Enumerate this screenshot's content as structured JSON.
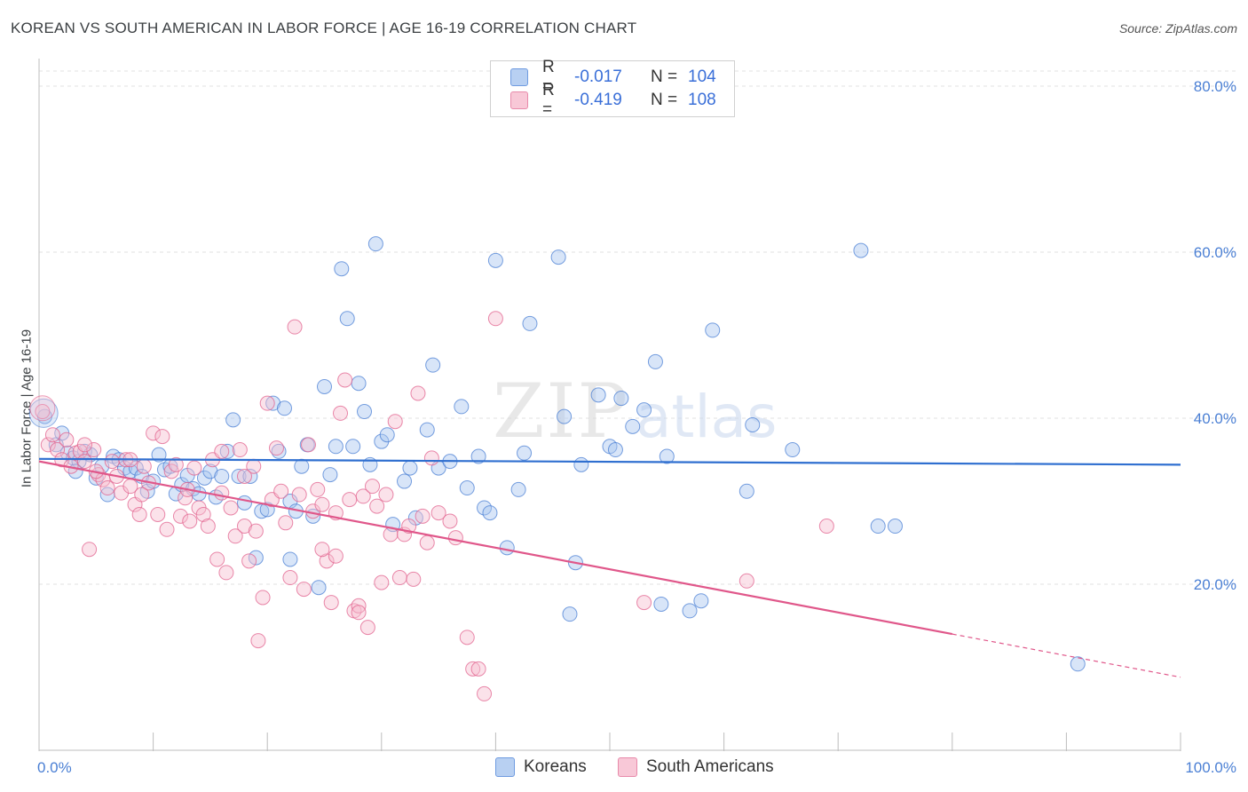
{
  "header": {
    "title": "KOREAN VS SOUTH AMERICAN IN LABOR FORCE | AGE 16-19 CORRELATION CHART",
    "source": "Source: ZipAtlas.com"
  },
  "legend": {
    "rows": [
      {
        "r_label": "R =",
        "r_value": "-0.017",
        "n_label": "N =",
        "n_value": "104",
        "color": "#8fb5ea"
      },
      {
        "r_label": "R =",
        "r_value": "-0.419",
        "n_label": "N =",
        "n_value": "108",
        "color": "#f0a4bd"
      }
    ]
  },
  "bottom_legend": {
    "items": [
      {
        "label": "Koreans",
        "color": "#8fb5ea"
      },
      {
        "label": "South Americans",
        "color": "#f0a4bd"
      }
    ]
  },
  "watermark": {
    "zip": "ZIP",
    "atlas": "atlas"
  },
  "chart_data": {
    "type": "scatter",
    "title": "KOREAN VS SOUTH AMERICAN IN LABOR FORCE | AGE 16-19 CORRELATION CHART",
    "xlabel": "",
    "ylabel": "In Labor Force | Age 16-19",
    "xlim": [
      0,
      100
    ],
    "ylim": [
      0,
      80
    ],
    "x_tick_labels": [
      "0.0%",
      "100.0%"
    ],
    "y_ticks": [
      20,
      40,
      60,
      80
    ],
    "y_tick_labels": [
      "20.0%",
      "40.0%",
      "60.0%",
      "80.0%"
    ],
    "grid": true,
    "series": [
      {
        "name": "Koreans",
        "color": "#4a7fd4",
        "fill": "#a9c6f0",
        "trend": {
          "x": [
            0,
            100
          ],
          "y": [
            35.1,
            34.4
          ]
        },
        "points": [
          [
            0.5,
            40.2
          ],
          [
            1.5,
            36.8
          ],
          [
            2.0,
            38.2
          ],
          [
            2.5,
            35.8
          ],
          [
            3.0,
            35.2
          ],
          [
            3.5,
            34.8
          ],
          [
            4.0,
            36.0
          ],
          [
            4.5,
            35.6
          ],
          [
            5.0,
            32.8
          ],
          [
            5.5,
            34.2
          ],
          [
            6.0,
            30.8
          ],
          [
            6.5,
            35.4
          ],
          [
            7.0,
            35.0
          ],
          [
            7.5,
            34.0
          ],
          [
            8.0,
            33.6
          ],
          [
            8.5,
            34.0
          ],
          [
            9.0,
            33.0
          ],
          [
            9.5,
            31.2
          ],
          [
            10.0,
            32.4
          ],
          [
            10.5,
            35.6
          ],
          [
            11.0,
            33.8
          ],
          [
            11.5,
            34.2
          ],
          [
            12.0,
            30.9
          ],
          [
            12.5,
            32.0
          ],
          [
            13.0,
            33.1
          ],
          [
            13.5,
            31.5
          ],
          [
            14.0,
            30.9
          ],
          [
            14.5,
            32.8
          ],
          [
            15.0,
            33.6
          ],
          [
            15.5,
            30.5
          ],
          [
            16.0,
            33.0
          ],
          [
            16.5,
            36.0
          ],
          [
            17.0,
            39.8
          ],
          [
            17.5,
            33.0
          ],
          [
            18.0,
            29.8
          ],
          [
            18.5,
            33.0
          ],
          [
            19.0,
            23.2
          ],
          [
            19.5,
            28.8
          ],
          [
            20.0,
            29.0
          ],
          [
            20.5,
            41.8
          ],
          [
            21.0,
            36.0
          ],
          [
            21.5,
            41.2
          ],
          [
            22.0,
            30.0
          ],
          [
            22.5,
            28.8
          ],
          [
            23.0,
            34.2
          ],
          [
            23.5,
            36.8
          ],
          [
            24.0,
            28.2
          ],
          [
            24.5,
            19.6
          ],
          [
            25.0,
            43.8
          ],
          [
            25.5,
            33.2
          ],
          [
            26.0,
            36.6
          ],
          [
            26.5,
            58.0
          ],
          [
            27.0,
            52.0
          ],
          [
            27.5,
            36.6
          ],
          [
            28.0,
            44.2
          ],
          [
            28.5,
            40.8
          ],
          [
            29.0,
            34.4
          ],
          [
            29.5,
            61.0
          ],
          [
            30.0,
            37.2
          ],
          [
            30.5,
            38.0
          ],
          [
            31.0,
            27.2
          ],
          [
            32.0,
            32.4
          ],
          [
            32.5,
            34.0
          ],
          [
            33.0,
            28.0
          ],
          [
            34.0,
            38.6
          ],
          [
            34.5,
            46.4
          ],
          [
            35.0,
            34.0
          ],
          [
            36.0,
            34.8
          ],
          [
            37.0,
            41.4
          ],
          [
            37.5,
            31.6
          ],
          [
            38.5,
            35.4
          ],
          [
            39.0,
            29.2
          ],
          [
            39.5,
            28.6
          ],
          [
            40.0,
            59.0
          ],
          [
            41.0,
            24.4
          ],
          [
            42.0,
            31.4
          ],
          [
            42.5,
            35.8
          ],
          [
            43.0,
            51.4
          ],
          [
            45.5,
            59.4
          ],
          [
            46.0,
            40.2
          ],
          [
            46.5,
            16.4
          ],
          [
            47.0,
            22.6
          ],
          [
            47.5,
            34.4
          ],
          [
            49.0,
            42.8
          ],
          [
            50.0,
            36.6
          ],
          [
            50.5,
            36.2
          ],
          [
            51.0,
            42.4
          ],
          [
            52.0,
            39.0
          ],
          [
            53.0,
            41.0
          ],
          [
            54.0,
            46.8
          ],
          [
            54.5,
            17.6
          ],
          [
            55.0,
            35.4
          ],
          [
            57.0,
            16.8
          ],
          [
            58.0,
            18.0
          ],
          [
            59.0,
            50.6
          ],
          [
            62.0,
            31.2
          ],
          [
            62.5,
            39.2
          ],
          [
            66.0,
            36.2
          ],
          [
            72.0,
            60.2
          ],
          [
            73.5,
            27.0
          ],
          [
            75.0,
            27.0
          ],
          [
            91.0,
            10.4
          ],
          [
            3.2,
            33.6
          ],
          [
            22.0,
            23.0
          ]
        ]
      },
      {
        "name": "South Americans",
        "color": "#e2628e",
        "fill": "#f6bfd0",
        "trend": {
          "x": [
            0,
            80
          ],
          "y": [
            34.8,
            14.0
          ]
        },
        "trend_dashed": {
          "x": [
            80,
            100
          ],
          "y": [
            14.0,
            8.8
          ]
        },
        "points": [
          [
            0.3,
            40.8
          ],
          [
            0.8,
            36.8
          ],
          [
            1.2,
            38.0
          ],
          [
            1.6,
            36.2
          ],
          [
            2.0,
            35.0
          ],
          [
            2.4,
            37.4
          ],
          [
            2.8,
            34.2
          ],
          [
            3.2,
            35.8
          ],
          [
            3.6,
            36.0
          ],
          [
            4.0,
            34.8
          ],
          [
            4.4,
            24.2
          ],
          [
            4.8,
            36.2
          ],
          [
            5.2,
            33.2
          ],
          [
            5.6,
            32.6
          ],
          [
            6.0,
            31.6
          ],
          [
            6.4,
            34.8
          ],
          [
            6.8,
            33.0
          ],
          [
            7.2,
            31.0
          ],
          [
            7.6,
            35.0
          ],
          [
            8.0,
            31.8
          ],
          [
            8.4,
            29.6
          ],
          [
            8.8,
            28.4
          ],
          [
            9.2,
            34.2
          ],
          [
            9.6,
            32.2
          ],
          [
            10.0,
            38.2
          ],
          [
            10.4,
            28.4
          ],
          [
            10.8,
            37.8
          ],
          [
            11.2,
            26.6
          ],
          [
            11.6,
            33.6
          ],
          [
            12.0,
            34.4
          ],
          [
            12.4,
            28.2
          ],
          [
            12.8,
            30.4
          ],
          [
            13.2,
            27.6
          ],
          [
            13.6,
            34.0
          ],
          [
            14.0,
            29.2
          ],
          [
            14.4,
            28.4
          ],
          [
            14.8,
            27.0
          ],
          [
            15.2,
            35.0
          ],
          [
            15.6,
            23.0
          ],
          [
            16.0,
            31.0
          ],
          [
            16.4,
            21.4
          ],
          [
            16.8,
            29.2
          ],
          [
            17.2,
            25.8
          ],
          [
            17.6,
            36.2
          ],
          [
            18.0,
            27.0
          ],
          [
            18.4,
            22.8
          ],
          [
            18.8,
            34.2
          ],
          [
            19.2,
            13.2
          ],
          [
            19.6,
            18.4
          ],
          [
            20.0,
            41.8
          ],
          [
            20.4,
            30.2
          ],
          [
            20.8,
            36.4
          ],
          [
            21.2,
            31.2
          ],
          [
            21.6,
            27.4
          ],
          [
            22.0,
            20.8
          ],
          [
            22.4,
            51.0
          ],
          [
            22.8,
            30.8
          ],
          [
            23.2,
            19.4
          ],
          [
            23.6,
            36.8
          ],
          [
            24.0,
            28.8
          ],
          [
            24.4,
            31.4
          ],
          [
            24.8,
            29.6
          ],
          [
            25.2,
            22.8
          ],
          [
            25.6,
            17.8
          ],
          [
            26.0,
            23.4
          ],
          [
            26.4,
            40.6
          ],
          [
            26.8,
            44.6
          ],
          [
            27.2,
            30.2
          ],
          [
            27.6,
            16.8
          ],
          [
            28.0,
            17.4
          ],
          [
            28.4,
            30.6
          ],
          [
            28.8,
            14.8
          ],
          [
            29.2,
            31.8
          ],
          [
            29.6,
            29.4
          ],
          [
            30.0,
            20.2
          ],
          [
            30.4,
            30.8
          ],
          [
            30.8,
            26.0
          ],
          [
            31.2,
            39.6
          ],
          [
            31.6,
            20.8
          ],
          [
            32.0,
            26.0
          ],
          [
            32.4,
            27.0
          ],
          [
            32.8,
            20.6
          ],
          [
            33.2,
            43.0
          ],
          [
            33.6,
            28.2
          ],
          [
            34.0,
            25.0
          ],
          [
            34.4,
            35.2
          ],
          [
            35.0,
            28.6
          ],
          [
            36.0,
            27.6
          ],
          [
            37.5,
            13.6
          ],
          [
            38.0,
            9.8
          ],
          [
            38.5,
            9.8
          ],
          [
            39.0,
            6.8
          ],
          [
            40.0,
            52.0
          ],
          [
            53.0,
            17.8
          ],
          [
            62.0,
            20.4
          ],
          [
            69.0,
            27.0
          ],
          [
            16.0,
            36.0
          ],
          [
            4.0,
            36.8
          ],
          [
            5.0,
            33.6
          ],
          [
            9.0,
            30.8
          ],
          [
            24.8,
            24.2
          ],
          [
            28.0,
            16.6
          ],
          [
            36.5,
            25.6
          ],
          [
            13.0,
            31.4
          ],
          [
            19.0,
            26.4
          ],
          [
            26.0,
            28.6
          ],
          [
            18.0,
            33.0
          ],
          [
            8.0,
            35.0
          ]
        ]
      }
    ]
  }
}
